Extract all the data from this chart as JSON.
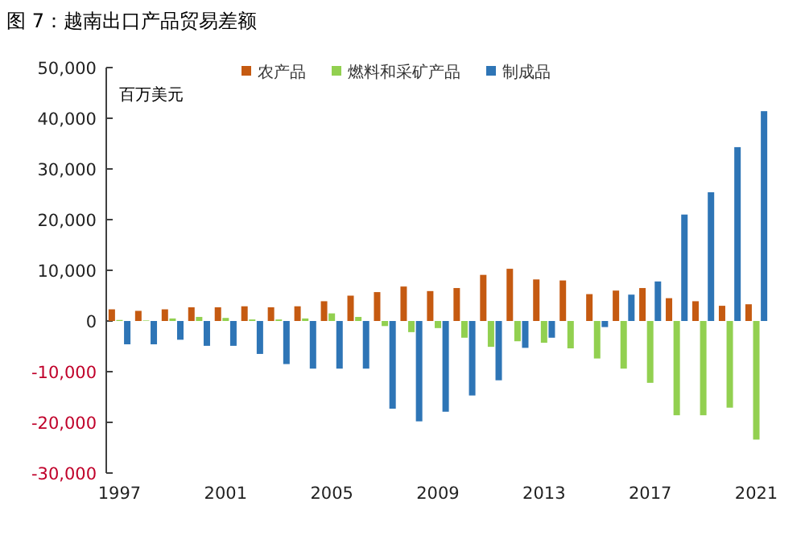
{
  "chart_data": {
    "type": "bar",
    "title": "图 7：越南出口产品贸易差额",
    "annotations": [
      "百万美元"
    ],
    "categories": [
      "1997",
      null,
      null,
      null,
      "2001",
      null,
      null,
      null,
      "2005",
      null,
      null,
      null,
      "2009",
      null,
      null,
      null,
      "2013",
      null,
      null,
      null,
      "2017",
      null,
      null,
      null,
      "2021"
    ],
    "series": [
      {
        "name": "农产品",
        "color": "#c55a11",
        "values": [
          2300,
          2000,
          2300,
          2700,
          2700,
          2900,
          2700,
          2900,
          3900,
          5000,
          5700,
          6800,
          5900,
          6500,
          9100,
          10300,
          8200,
          8000,
          5300,
          6000,
          6500,
          4500,
          3900,
          3000,
          3300
        ]
      },
      {
        "name": "燃料和采矿产品",
        "color": "#92d050",
        "values": [
          200,
          100,
          500,
          800,
          600,
          300,
          300,
          500,
          1500,
          800,
          -1000,
          -2200,
          -1400,
          -3300,
          -5100,
          -4000,
          -4300,
          -5400,
          -7400,
          -9400,
          -12200,
          -18600,
          -18600,
          -17100,
          -23400
        ]
      },
      {
        "name": "制成品",
        "color": "#2e75b6",
        "values": [
          -4600,
          -4600,
          -3700,
          -4900,
          -4900,
          -6500,
          -8500,
          -9400,
          -9400,
          -9400,
          -17300,
          -19800,
          -17900,
          -14700,
          -11700,
          -5300,
          -3300,
          0,
          -1200,
          5200,
          7800,
          21000,
          25400,
          34300,
          41400
        ]
      }
    ],
    "ylim": [
      -30000,
      50000
    ],
    "yticks": [
      {
        "value": -30000,
        "label": "-30,000"
      },
      {
        "value": -20000,
        "label": "-20,000"
      },
      {
        "value": -10000,
        "label": "-10,000"
      },
      0,
      {
        "value": 10000,
        "label": "10,000"
      },
      {
        "value": 20000,
        "label": "20,000"
      },
      {
        "value": 30000,
        "label": "30,000"
      },
      {
        "value": 40000,
        "label": "40,000"
      },
      {
        "value": 50000,
        "label": "50,000"
      }
    ],
    "legend": "top",
    "grid": false
  }
}
